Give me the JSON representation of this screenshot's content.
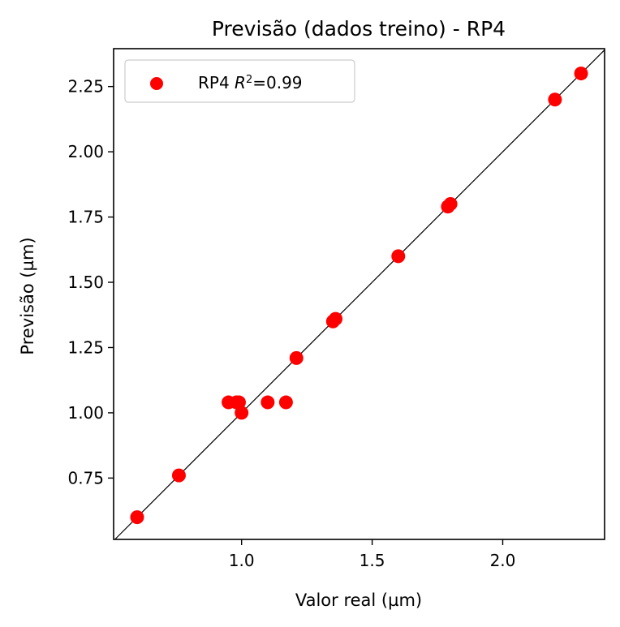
{
  "chart_data": {
    "type": "scatter",
    "title": "Previsão (dados treino) - RP4",
    "xlabel": "Valor real (µm)",
    "ylabel": "Previsão (µm)",
    "xlim": [
      0.51,
      2.39
    ],
    "ylim": [
      0.515,
      2.395
    ],
    "xticks": [
      1.0,
      1.5,
      2.0
    ],
    "xtick_labels": [
      "1.0",
      "1.5",
      "2.0"
    ],
    "yticks": [
      0.75,
      1.0,
      1.25,
      1.5,
      1.75,
      2.0,
      2.25
    ],
    "ytick_labels": [
      "0.75",
      "1.00",
      "1.25",
      "1.50",
      "1.75",
      "2.00",
      "2.25"
    ],
    "grid": false,
    "legend_position": "top-left",
    "reference_line": "y = x",
    "series": [
      {
        "name": "RP4",
        "legend_label": "RP4 R²=0.99",
        "legend_prefix": "RP4 ",
        "legend_r": "R",
        "legend_sup": "2",
        "legend_value": "=0.99",
        "color": "#ff0000",
        "x": [
          0.6,
          0.76,
          0.95,
          0.98,
          0.99,
          1.0,
          1.1,
          1.17,
          1.21,
          1.35,
          1.36,
          1.6,
          1.79,
          1.8,
          2.2,
          2.3
        ],
        "y": [
          0.6,
          0.76,
          1.04,
          1.04,
          1.04,
          1.0,
          1.04,
          1.04,
          1.21,
          1.35,
          1.36,
          1.6,
          1.79,
          1.8,
          2.2,
          2.3
        ]
      }
    ]
  }
}
